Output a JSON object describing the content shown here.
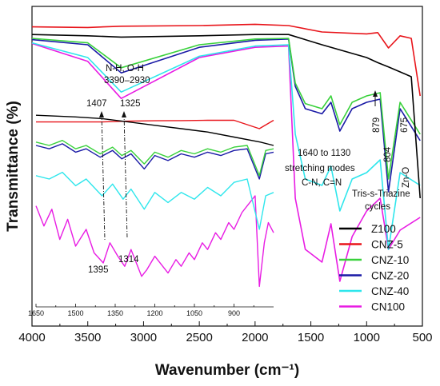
{
  "chart_data": {
    "type": "line",
    "xlabel": "Wavenumber (cm⁻¹)",
    "ylabel": "Transmittance (%)",
    "xlim": [
      4000,
      500
    ],
    "x_reversed": true,
    "x_ticks": [
      4000,
      3500,
      3000,
      2500,
      2000,
      1500,
      1000,
      500
    ],
    "y_ticks": [],
    "grid": false,
    "legend_position": "bottom-right",
    "colors": {
      "Z100": "#000000",
      "CNZ-5": "#e8141a",
      "CNZ-10": "#39d13b",
      "CNZ-20": "#1a1aa6",
      "CNZ-40": "#2ee6ec",
      "CN100": "#e81ce3"
    },
    "series": [
      {
        "name": "Z100",
        "color": "#000000",
        "x": [
          4000,
          3500,
          3200,
          2500,
          2000,
          1700,
          1400,
          1000,
          900,
          800,
          600,
          520
        ],
        "y": [
          85.6,
          85.4,
          85.2,
          85.4,
          85.6,
          85.6,
          84.0,
          82.0,
          81.2,
          80.5,
          79.0,
          60.0
        ]
      },
      {
        "name": "CNZ-5",
        "color": "#e8141a",
        "x": [
          4000,
          3500,
          3200,
          2500,
          2000,
          1700,
          1400,
          1000,
          900,
          804,
          700,
          600,
          520
        ],
        "y": [
          86.8,
          86.7,
          86.9,
          87.0,
          87.2,
          87.0,
          86.0,
          85.7,
          85.9,
          83.5,
          85.4,
          85.0,
          76.0
        ]
      },
      {
        "name": "CNZ-10",
        "color": "#39d13b",
        "x": [
          4000,
          3500,
          3200,
          2500,
          2000,
          1700,
          1640,
          1550,
          1400,
          1320,
          1240,
          1130,
          1000,
          879,
          804,
          700,
          520
        ],
        "y": [
          85.0,
          84.3,
          80.4,
          84.0,
          84.9,
          85.0,
          78.0,
          74.8,
          74.0,
          76.0,
          71.5,
          75.0,
          76.0,
          76.5,
          63.0,
          75.0,
          70.0
        ]
      },
      {
        "name": "CNZ-20",
        "color": "#1a1aa6",
        "x": [
          4000,
          3500,
          3200,
          2500,
          2000,
          1700,
          1640,
          1550,
          1400,
          1320,
          1240,
          1130,
          1000,
          879,
          804,
          700,
          520
        ],
        "y": [
          84.8,
          84.0,
          79.6,
          83.6,
          84.7,
          84.9,
          77.5,
          74.0,
          73.2,
          75.0,
          70.5,
          74.0,
          75.0,
          75.5,
          61.0,
          74.0,
          69.0
        ]
      },
      {
        "name": "CNZ-40",
        "color": "#2ee6ec",
        "x": [
          4000,
          3500,
          3200,
          2500,
          2000,
          1700,
          1640,
          1550,
          1400,
          1320,
          1240,
          1130,
          1000,
          879,
          804,
          700,
          520
        ],
        "y": [
          84.3,
          82.0,
          76.6,
          82.2,
          83.8,
          84.0,
          70.0,
          63.0,
          62.0,
          65.0,
          58.0,
          63.0,
          64.0,
          66.0,
          52.0,
          64.0,
          62.0
        ]
      },
      {
        "name": "CN100",
        "color": "#e81ce3",
        "x": [
          4000,
          3500,
          3200,
          2500,
          2000,
          1700,
          1640,
          1550,
          1400,
          1320,
          1240,
          1130,
          1000,
          879,
          804,
          700,
          520
        ],
        "y": [
          84.2,
          81.4,
          75.6,
          82.0,
          83.6,
          83.8,
          60.0,
          52.0,
          50.0,
          56.0,
          47.0,
          54.0,
          58.0,
          60.0,
          52.0,
          55.0,
          57.0
        ]
      }
    ],
    "inset": {
      "xlim": [
        1650,
        750
      ],
      "x_ticks": [
        1650,
        1500,
        1350,
        1200,
        1050,
        900
      ],
      "marked_peaks": [
        1407,
        1325,
        1395,
        1314
      ],
      "series": [
        {
          "name": "Z100",
          "color": "#000000",
          "x": [
            1650,
            1500,
            1400,
            1300,
            1200,
            1100,
            1000,
            900,
            800,
            750
          ],
          "y": [
            98,
            97,
            96,
            94,
            92,
            90,
            88,
            85,
            82,
            80
          ]
        },
        {
          "name": "CNZ-5",
          "color": "#e8141a",
          "x": [
            1650,
            1500,
            1400,
            1300,
            1200,
            1100,
            1000,
            900,
            804,
            750
          ],
          "y": [
            94,
            94,
            94,
            94.5,
            94.7,
            94.8,
            95,
            95,
            90,
            95
          ]
        },
        {
          "name": "CNZ-10",
          "color": "#39d13b",
          "x": [
            1650,
            1600,
            1550,
            1500,
            1460,
            1407,
            1360,
            1325,
            1290,
            1240,
            1200,
            1150,
            1100,
            1050,
            1000,
            950,
            900,
            850,
            804,
            780,
            750
          ],
          "y": [
            82,
            80,
            83,
            78,
            80,
            75,
            79,
            74,
            77,
            69,
            76,
            73,
            77,
            75,
            78,
            76,
            79,
            80,
            62,
            77,
            78
          ]
        },
        {
          "name": "CNZ-20",
          "color": "#1a1aa6",
          "x": [
            1650,
            1600,
            1550,
            1500,
            1460,
            1407,
            1360,
            1325,
            1290,
            1240,
            1200,
            1150,
            1100,
            1050,
            1000,
            950,
            900,
            850,
            804,
            780,
            750
          ],
          "y": [
            80,
            78,
            81,
            76,
            78,
            73,
            77,
            72,
            75,
            66,
            74,
            71,
            75,
            73,
            76,
            74,
            77,
            78,
            60,
            75,
            76
          ]
        },
        {
          "name": "CNZ-40",
          "color": "#2ee6ec",
          "x": [
            1650,
            1600,
            1550,
            1500,
            1460,
            1400,
            1360,
            1320,
            1290,
            1240,
            1200,
            1150,
            1100,
            1050,
            1000,
            950,
            900,
            850,
            804,
            780,
            750
          ],
          "y": [
            62,
            60,
            64,
            56,
            60,
            50,
            57,
            48,
            54,
            42,
            52,
            46,
            52,
            48,
            55,
            50,
            58,
            60,
            30,
            50,
            52
          ]
        },
        {
          "name": "CN100",
          "color": "#e81ce3",
          "x": [
            1650,
            1620,
            1590,
            1560,
            1530,
            1500,
            1460,
            1430,
            1395,
            1370,
            1340,
            1314,
            1290,
            1250,
            1230,
            1200,
            1170,
            1150,
            1120,
            1100,
            1070,
            1050,
            1020,
            1000,
            970,
            950,
            920,
            900,
            870,
            850,
            820,
            804,
            785,
            770,
            750
          ],
          "y": [
            44,
            32,
            42,
            24,
            36,
            20,
            30,
            16,
            10,
            22,
            14,
            8,
            18,
            2,
            6,
            14,
            8,
            4,
            12,
            8,
            16,
            12,
            22,
            18,
            28,
            24,
            34,
            30,
            40,
            44,
            50,
            -4,
            22,
            34,
            28
          ]
        }
      ]
    },
    "annotations": [
      "N-H, O-H",
      "3390–2930",
      "1640 to 1130",
      "stretching modes",
      "C-N, C=N",
      "879",
      "804",
      "Zn-O",
      "675",
      "Tris-s-Triazine",
      "cycles",
      "1407",
      "1325",
      "1395",
      "1314"
    ]
  }
}
